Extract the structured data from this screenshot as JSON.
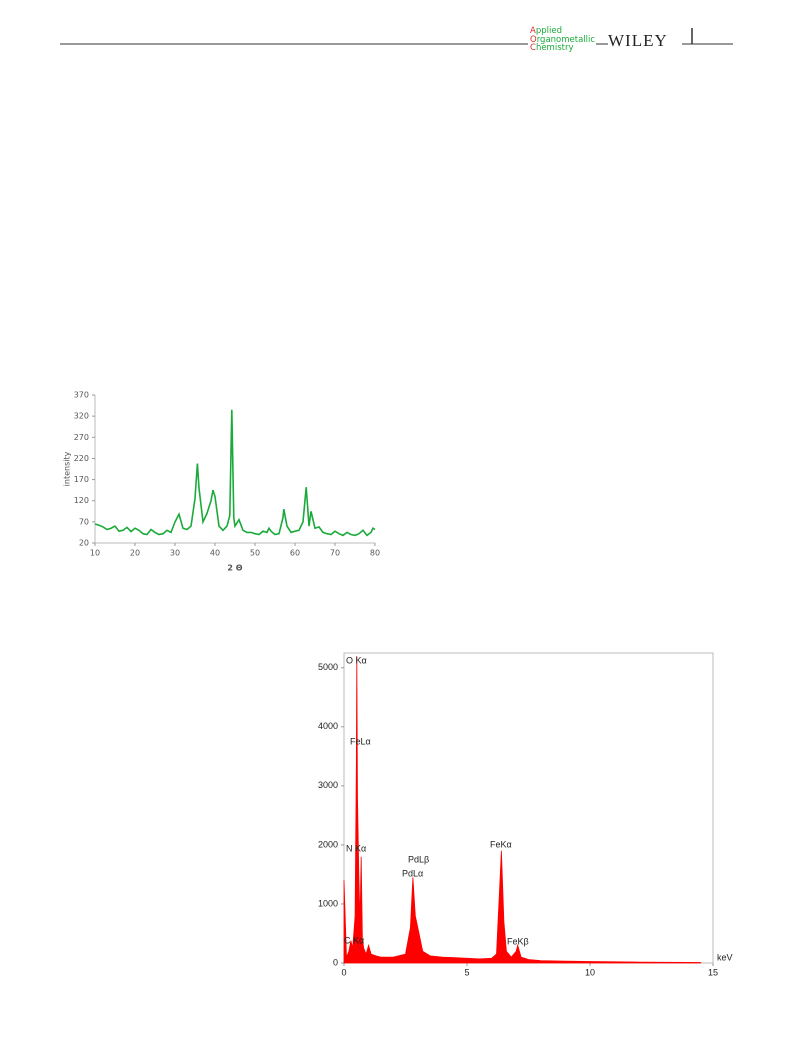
{
  "header": {
    "journal": [
      "Applied",
      "Organometallic",
      "Chemistry"
    ],
    "publisher": "WILEY"
  },
  "chart_data": [
    {
      "type": "line",
      "x_label": "2 Θ",
      "y_label": "intensity",
      "color": "#1aaa3a",
      "x": [
        10,
        11,
        12,
        13,
        14,
        15,
        16,
        17,
        18,
        19,
        20,
        21,
        22,
        23,
        24,
        25,
        26,
        27,
        28,
        29,
        30,
        31,
        32,
        33,
        34,
        35,
        35.6,
        36,
        37,
        38,
        39,
        39.5,
        40,
        41,
        42,
        43,
        43.7,
        44.2,
        44.7,
        45,
        46,
        47,
        48,
        49,
        50,
        51,
        52,
        53,
        53.5,
        54,
        55,
        56,
        57,
        57.2,
        58,
        59,
        60,
        61,
        62,
        62.8,
        63.5,
        64,
        65,
        66,
        67,
        68,
        69,
        70,
        71,
        72,
        73,
        74,
        75,
        76,
        77,
        78,
        79,
        79.5,
        80
      ],
      "values": [
        65,
        62,
        58,
        52,
        55,
        60,
        48,
        50,
        57,
        47,
        55,
        50,
        42,
        40,
        52,
        45,
        40,
        42,
        50,
        45,
        70,
        88,
        55,
        52,
        60,
        125,
        208,
        150,
        70,
        90,
        120,
        145,
        130,
        60,
        50,
        60,
        85,
        335,
        80,
        60,
        75,
        50,
        45,
        45,
        42,
        40,
        48,
        45,
        55,
        48,
        40,
        42,
        80,
        100,
        60,
        45,
        48,
        50,
        70,
        152,
        60,
        95,
        55,
        58,
        45,
        42,
        40,
        48,
        42,
        38,
        45,
        40,
        38,
        42,
        50,
        38,
        45,
        55,
        52
      ],
      "xlim": [
        10,
        80
      ],
      "ylim": [
        20,
        370
      ],
      "xticks": [
        10,
        20,
        30,
        40,
        50,
        60,
        70,
        80
      ],
      "yticks": [
        20,
        70,
        120,
        170,
        220,
        270,
        320,
        370
      ]
    },
    {
      "type": "area",
      "x_label": "keV",
      "color": "#ff0000",
      "annotations": [
        "O Kα",
        "FeLα",
        "N Kα",
        "PdLβ",
        "PdLα",
        "FeKα",
        "FeKβ",
        "C Kα"
      ],
      "x": [
        0,
        0.1,
        0.2,
        0.28,
        0.35,
        0.4,
        0.45,
        0.5,
        0.52,
        0.55,
        0.6,
        0.65,
        0.7,
        0.75,
        0.8,
        0.9,
        1.0,
        1.1,
        1.3,
        1.5,
        2.0,
        2.5,
        2.7,
        2.8,
        2.9,
        3.0,
        3.2,
        3.5,
        4,
        4.5,
        5,
        5.5,
        6,
        6.2,
        6.4,
        6.5,
        6.6,
        6.8,
        7.0,
        7.06,
        7.2,
        7.5,
        8,
        9,
        10,
        11,
        12,
        13,
        14,
        14.5
      ],
      "values": [
        1400,
        100,
        200,
        380,
        250,
        500,
        800,
        3300,
        5200,
        2800,
        1500,
        700,
        1800,
        400,
        250,
        150,
        300,
        150,
        120,
        100,
        100,
        150,
        600,
        1450,
        800,
        600,
        200,
        120,
        100,
        90,
        80,
        70,
        80,
        150,
        1900,
        700,
        200,
        100,
        200,
        300,
        100,
        60,
        40,
        30,
        25,
        20,
        15,
        12,
        10,
        8
      ],
      "xlim": [
        0,
        15
      ],
      "ylim": [
        0,
        5250
      ],
      "xticks": [
        0,
        5,
        10,
        15
      ],
      "yticks": [
        0,
        1000,
        2000,
        3000,
        4000,
        5000
      ]
    }
  ]
}
